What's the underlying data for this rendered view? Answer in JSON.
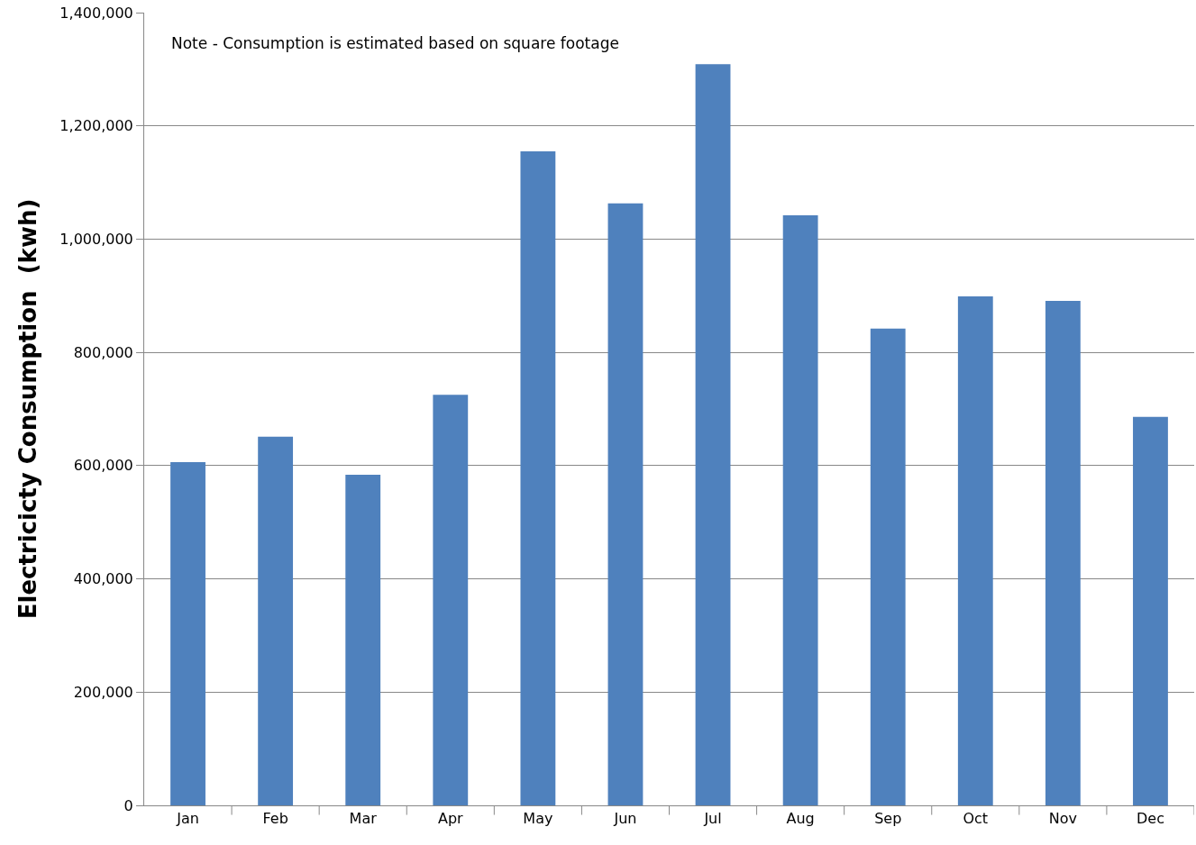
{
  "chart_data": {
    "type": "bar",
    "ylabel": "Electricicty Consumption  (kwh)",
    "annotations": [
      "Note - Consumption is estimated based on square footage"
    ],
    "categories": [
      "Jan",
      "Feb",
      "Mar",
      "Apr",
      "May",
      "Jun",
      "Jul",
      "Aug",
      "Sep",
      "Oct",
      "Nov",
      "Dec"
    ],
    "values": [
      606000,
      651000,
      584000,
      725000,
      1155000,
      1063000,
      1309000,
      1042000,
      842000,
      899000,
      891000,
      686000
    ],
    "color": "#4f81bd",
    "ylim": [
      0,
      1400000
    ],
    "yticks": [
      {
        "value": 0,
        "label": "0"
      },
      {
        "value": 200000,
        "label": "200,000"
      },
      {
        "value": 400000,
        "label": "400,000"
      },
      {
        "value": 600000,
        "label": "600,000"
      },
      {
        "value": 800000,
        "label": "800,000"
      },
      {
        "value": 1000000,
        "label": "1,000,000"
      },
      {
        "value": 1200000,
        "label": "1,200,000"
      },
      {
        "value": 1400000,
        "label": "1,400,000"
      }
    ],
    "grid": "y",
    "legend": false
  }
}
